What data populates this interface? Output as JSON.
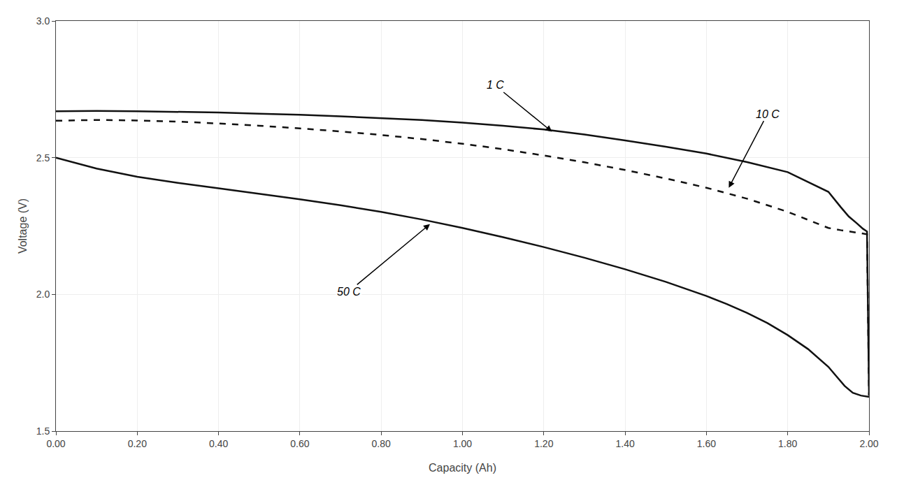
{
  "chart_data": {
    "type": "line",
    "xlabel": "Capacity (Ah)",
    "ylabel": "Voltage (V)",
    "xlim": [
      0.0,
      2.0
    ],
    "ylim": [
      1.5,
      3.0
    ],
    "xticks": [
      {
        "value": 0.0,
        "label": "0.00"
      },
      {
        "value": 0.2,
        "label": "0.20"
      },
      {
        "value": 0.4,
        "label": "0.40"
      },
      {
        "value": 0.6,
        "label": "0.60"
      },
      {
        "value": 0.8,
        "label": "0.80"
      },
      {
        "value": 1.0,
        "label": "1.00"
      },
      {
        "value": 1.2,
        "label": "1.20"
      },
      {
        "value": 1.4,
        "label": "1.40"
      },
      {
        "value": 1.6,
        "label": "1.60"
      },
      {
        "value": 1.8,
        "label": "1.80"
      },
      {
        "value": 2.0,
        "label": "2.00"
      }
    ],
    "yticks": [
      1.5,
      {
        "value": 2.0,
        "label": "2.0"
      },
      2.5,
      {
        "value": 3.0,
        "label": "3.0"
      }
    ],
    "grid": true,
    "series": [
      {
        "name": "1 C",
        "color": "#111111",
        "line_style": "solid",
        "x": [
          0.0,
          0.1,
          0.2,
          0.3,
          0.4,
          0.5,
          0.6,
          0.7,
          0.8,
          0.9,
          1.0,
          1.1,
          1.2,
          1.3,
          1.4,
          1.5,
          1.6,
          1.7,
          1.8,
          1.9,
          1.93,
          1.95,
          1.97,
          1.985,
          1.995,
          2.0
        ],
        "values": [
          2.67,
          2.671,
          2.67,
          2.668,
          2.665,
          2.661,
          2.657,
          2.651,
          2.645,
          2.638,
          2.628,
          2.617,
          2.603,
          2.585,
          2.563,
          2.54,
          2.515,
          2.484,
          2.447,
          2.375,
          2.32,
          2.285,
          2.26,
          2.24,
          2.23,
          1.63
        ]
      },
      {
        "name": "10 C",
        "color": "#111111",
        "line_style": "dashed",
        "x": [
          0.0,
          0.1,
          0.2,
          0.3,
          0.4,
          0.5,
          0.6,
          0.7,
          0.8,
          0.9,
          1.0,
          1.1,
          1.2,
          1.3,
          1.4,
          1.5,
          1.6,
          1.7,
          1.8,
          1.9,
          1.93,
          1.95,
          1.97,
          1.985,
          1.995,
          2.0
        ],
        "values": [
          2.635,
          2.638,
          2.636,
          2.632,
          2.625,
          2.617,
          2.607,
          2.596,
          2.583,
          2.568,
          2.551,
          2.531,
          2.508,
          2.483,
          2.455,
          2.424,
          2.39,
          2.35,
          2.302,
          2.243,
          2.235,
          2.23,
          2.225,
          2.222,
          2.22,
          1.63
        ]
      },
      {
        "name": "50 C",
        "color": "#111111",
        "line_style": "solid",
        "x": [
          0.0,
          0.1,
          0.2,
          0.3,
          0.4,
          0.5,
          0.6,
          0.7,
          0.8,
          0.9,
          1.0,
          1.1,
          1.2,
          1.3,
          1.4,
          1.5,
          1.6,
          1.65,
          1.7,
          1.75,
          1.8,
          1.85,
          1.88,
          1.9,
          1.92,
          1.94,
          1.96,
          1.98,
          2.0
        ],
        "values": [
          2.5,
          2.46,
          2.43,
          2.408,
          2.388,
          2.368,
          2.348,
          2.326,
          2.302,
          2.274,
          2.243,
          2.209,
          2.173,
          2.134,
          2.092,
          2.046,
          1.994,
          1.965,
          1.932,
          1.895,
          1.851,
          1.8,
          1.762,
          1.735,
          1.7,
          1.665,
          1.64,
          1.63,
          1.625
        ]
      }
    ],
    "annotations": [
      {
        "text": "1 C",
        "xy": [
          1.22,
          2.595
        ],
        "xytext": [
          1.08,
          2.765
        ]
      },
      {
        "text": "10 C",
        "xy": [
          1.655,
          2.39
        ],
        "xytext": [
          1.75,
          2.66
        ]
      },
      {
        "text": "50 C",
        "xy": [
          0.92,
          2.257
        ],
        "xytext": [
          0.72,
          2.01
        ]
      }
    ]
  }
}
